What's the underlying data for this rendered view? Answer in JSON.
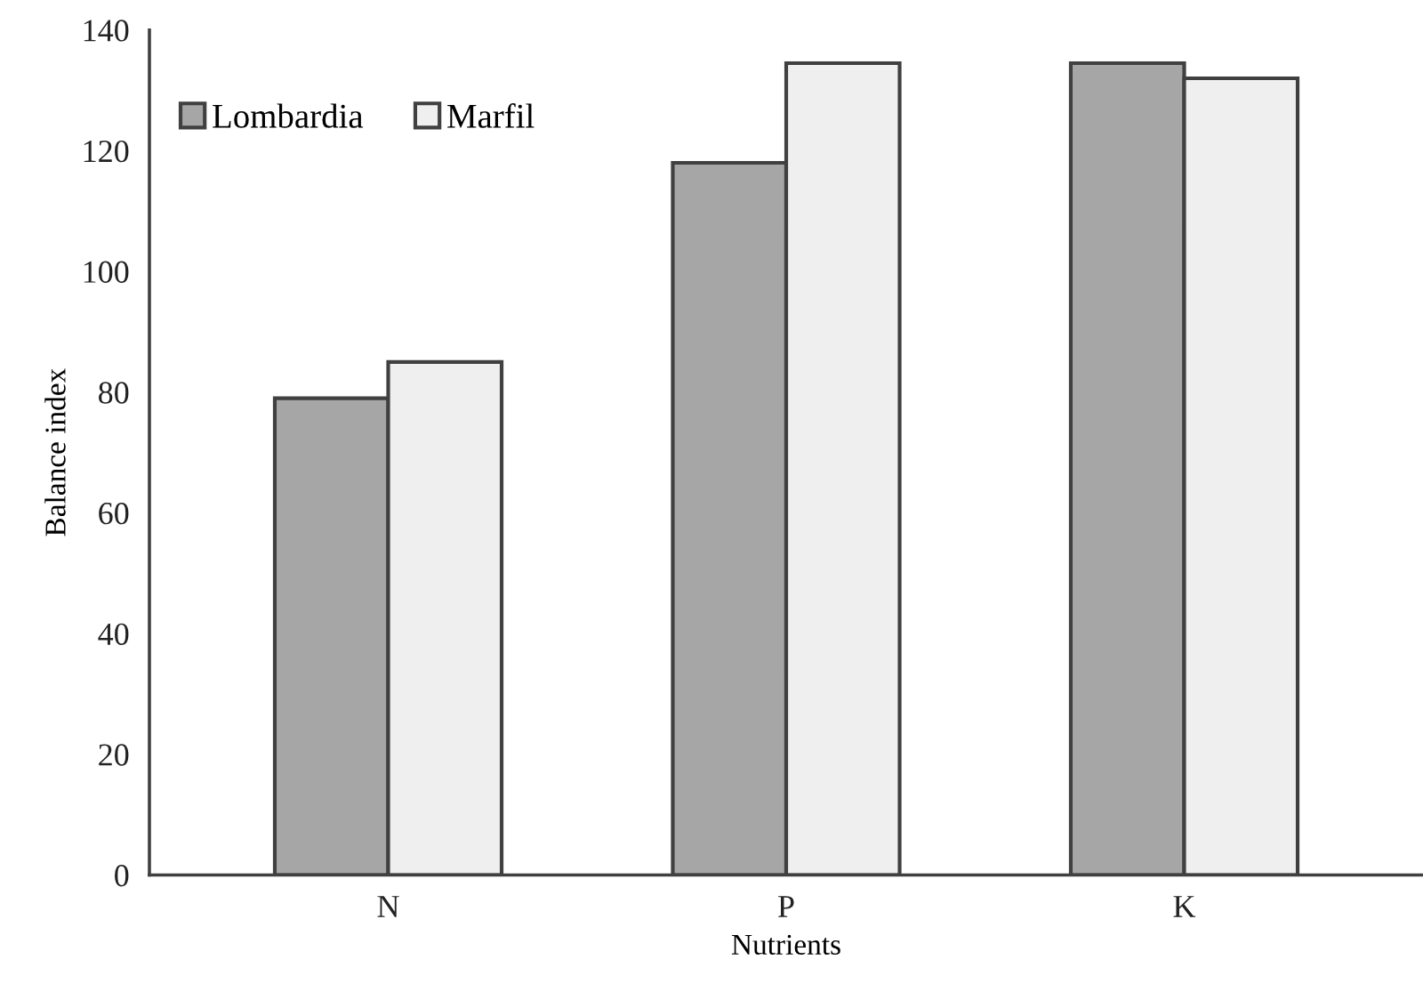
{
  "chart_data": {
    "type": "bar",
    "xlabel": "Nutrients",
    "ylabel": "Balance index",
    "categories": [
      "N",
      "P",
      "K"
    ],
    "series": [
      {
        "name": "Lombardia",
        "color": "#a6a6a6",
        "values": [
          79,
          118,
          134.5
        ]
      },
      {
        "name": "Marfil",
        "color": "#efefef",
        "values": [
          85,
          134.5,
          132
        ]
      }
    ],
    "ylim": [
      0,
      140
    ],
    "yticks": [
      0,
      20,
      40,
      60,
      80,
      100,
      120,
      140
    ],
    "grid": false,
    "legend": "top left"
  }
}
